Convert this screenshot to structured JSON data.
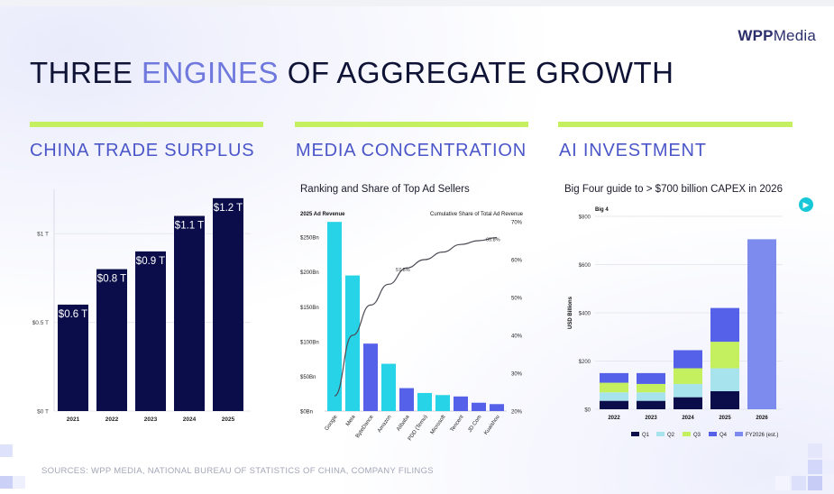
{
  "logo": {
    "wpp": "WPP",
    "media": "Media"
  },
  "title": {
    "part1": "THREE ",
    "accent": "ENGINES",
    "part2": " OF AGGREGATE GROWTH"
  },
  "sections": [
    {
      "heading": "CHINA TRADE SURPLUS",
      "subtitle": ""
    },
    {
      "heading": "MEDIA CONCENTRATION",
      "subtitle": "Ranking and Share of Top Ad Sellers"
    },
    {
      "heading": "AI INVESTMENT",
      "subtitle": "Big Four guide to > $700 billion CAPEX in 2026"
    }
  ],
  "footer": {
    "sources": "SOURCES: WPP MEDIA, NATIONAL BUREAU OF STATISTICS OF CHINA, COMPANY FILINGS"
  },
  "nav": {
    "icon": "arrow-right-icon"
  },
  "colors": {
    "navy": "#0b0d4a",
    "cyan": "#27d3e6",
    "blue": "#5561e8",
    "green": "#c4ef5e",
    "lightblue": "#a6e3ec",
    "periwinkle": "#7d8bee",
    "q1": "#0b0d4a",
    "q4": "#5561e8"
  },
  "chart_data": [
    {
      "type": "bar",
      "categories": [
        "2021",
        "2022",
        "2023",
        "2024",
        "2025"
      ],
      "values": [
        0.6,
        0.8,
        0.9,
        1.1,
        1.2
      ],
      "data_labels": [
        "$0.6 T",
        "$0.8 T",
        "$0.9 T",
        "$1.1 T",
        "$1.2 T"
      ],
      "yticks": [
        0,
        0.5,
        1
      ],
      "ytick_labels": [
        "$0 T",
        "$0.5 T",
        "$1 T"
      ],
      "ylim": [
        0,
        1.25
      ],
      "grid": true,
      "title": "",
      "xlabel": "",
      "ylabel": ""
    },
    {
      "type": "bar",
      "title": "Ranking and Share of Top Ad Sellers",
      "left_axis_title": "2025 Ad Revenue",
      "right_axis_title": "Cumulative Share of Total Ad Revenue",
      "categories": [
        "Google",
        "Meta",
        "ByteDance",
        "Amazon",
        "Alibaba",
        "PDD (Temu)",
        "Microsoft",
        "Tencent",
        "JD.Com",
        "Kuaishou"
      ],
      "values": [
        272,
        195,
        97,
        68,
        33,
        26,
        23,
        21,
        12,
        10
      ],
      "bar_colors": [
        "cyan",
        "cyan",
        "blue",
        "cyan",
        "blue",
        "cyan",
        "cyan",
        "blue",
        "blue",
        "blue"
      ],
      "yticks": [
        0,
        50,
        100,
        150,
        200,
        250
      ],
      "ytick_labels": [
        "$0Bn",
        "$50Bn",
        "$100Bn",
        "$150Bn",
        "$200Bn",
        "$250Bn"
      ],
      "ylim": [
        0,
        280
      ],
      "line_series": {
        "name": "Cumulative Share of Total Ad Revenue",
        "values": [
          24,
          40,
          48,
          53.5,
          57.8,
          60,
          62,
          64,
          65,
          65.8
        ]
      },
      "y2ticks": [
        20,
        30,
        40,
        50,
        60,
        70
      ],
      "y2tick_labels": [
        "20%",
        "30%",
        "40%",
        "50%",
        "60%",
        "70%"
      ],
      "y2lim": [
        20,
        70
      ],
      "annotations": [
        "57.8%",
        "65.8%"
      ]
    },
    {
      "type": "bar",
      "stacked": true,
      "title": "Big Four guide to > $700 billion CAPEX in 2026",
      "inner_title": "Big 4",
      "categories": [
        "2022",
        "2023",
        "2024",
        "2025",
        "2026"
      ],
      "ylabel": "USD Billions",
      "yticks": [
        0,
        200,
        400,
        600,
        800
      ],
      "ytick_labels": [
        "$0",
        "$200",
        "$400",
        "$600",
        "$800"
      ],
      "ylim": [
        0,
        800
      ],
      "series": [
        {
          "name": "Q1",
          "values": [
            35,
            35,
            50,
            75,
            0
          ]
        },
        {
          "name": "Q2",
          "values": [
            35,
            35,
            55,
            95,
            0
          ]
        },
        {
          "name": "Q3",
          "values": [
            40,
            35,
            65,
            110,
            0
          ]
        },
        {
          "name": "Q4",
          "values": [
            40,
            45,
            75,
            140,
            0
          ]
        },
        {
          "name": "FY2026 (est.)",
          "values": [
            0,
            0,
            0,
            0,
            705
          ]
        }
      ],
      "legend_position": "bottom",
      "grid": true
    }
  ]
}
